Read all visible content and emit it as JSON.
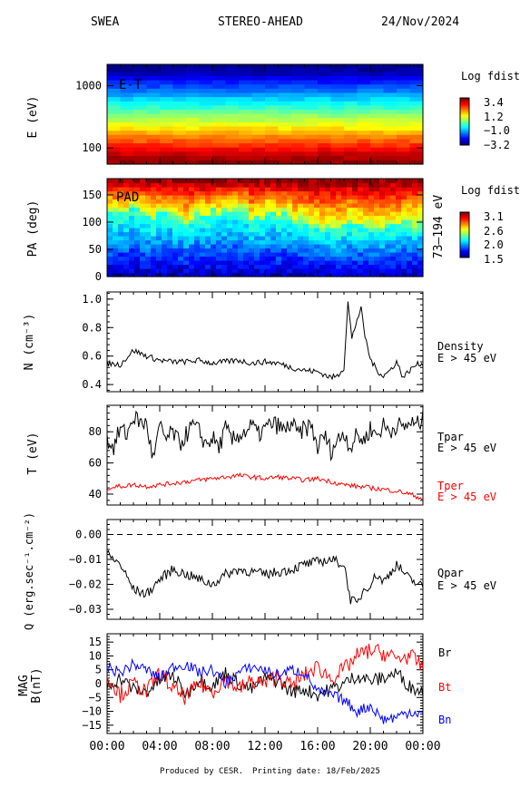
{
  "header": {
    "instrument": "SWEA",
    "spacecraft": "STEREO-AHEAD",
    "date": "24/Nov/2024"
  },
  "footer": {
    "produced_by": "Produced by CESR.",
    "printing_date": "Printing date: 18/Feb/2025"
  },
  "time_axis": {
    "tick_labels": [
      "00:00",
      "04:00",
      "08:00",
      "12:00",
      "16:00",
      "20:00",
      "00:00"
    ],
    "tick_hours": [
      0,
      4,
      8,
      12,
      16,
      20,
      24
    ],
    "range_hours": [
      0,
      24
    ]
  },
  "colors": {
    "black_series": "#000000",
    "red_series": "#ff0000",
    "blue_series": "#0000ff"
  },
  "chart_data": [
    {
      "type": "heatmap",
      "panel_label": "E-T",
      "ylabel": "E (eV)",
      "y_scale": "log",
      "ylim": [
        55,
        2200
      ],
      "y_tick_labels": [
        "100",
        "1000"
      ],
      "y_ticks": [
        100,
        1000
      ],
      "colorbar_title": "Log fdist",
      "colorbar_labels": [
        "3.4",
        "1.2",
        "−1.0",
        "−3.2"
      ],
      "colorbar_range": [
        -3.2,
        3.4
      ],
      "energy_levels_ev": [
        60,
        70,
        82,
        96,
        112,
        131,
        153,
        179,
        209,
        244,
        285,
        333,
        389,
        454,
        530,
        619,
        723,
        845,
        987,
        1153,
        1347,
        1573,
        1837,
        2146
      ],
      "log_fdist": [
        3.3,
        3.1,
        2.9,
        2.6,
        2.3,
        2.0,
        1.7,
        1.4,
        1.1,
        0.8,
        0.5,
        0.2,
        -0.1,
        -0.4,
        -0.7,
        -1.0,
        -1.3,
        -1.6,
        -1.9,
        -2.2,
        -2.5,
        -2.8,
        -3.0,
        -3.2
      ]
    },
    {
      "type": "heatmap",
      "panel_label": "PAD",
      "ylabel": "PA (deg)",
      "ylim": [
        0,
        180
      ],
      "y_tick_labels": [
        "0",
        "50",
        "100",
        "150"
      ],
      "y_ticks": [
        0,
        50,
        100,
        150
      ],
      "right_label": "73–194 eV",
      "colorbar_title": "Log fdist",
      "colorbar_labels": [
        "3.1",
        "2.6",
        "2.0",
        "1.5"
      ],
      "colorbar_range": [
        1.5,
        3.1
      ],
      "cross_over_hours": [
        0,
        1,
        2,
        3,
        4,
        5,
        6,
        7,
        8,
        9,
        10,
        11,
        12,
        13,
        14,
        15,
        16,
        17,
        18,
        19,
        20,
        21,
        22,
        23,
        24
      ],
      "pa_crossover_deg": [
        120,
        125,
        128,
        110,
        115,
        120,
        105,
        118,
        122,
        125,
        118,
        110,
        112,
        115,
        108,
        95,
        92,
        90,
        95,
        102,
        98,
        92,
        100,
        96,
        105
      ]
    },
    {
      "type": "line",
      "ylabel": "N (cm⁻³)",
      "ylim": [
        0.35,
        1.05
      ],
      "y_tick_labels": [
        "0.4",
        "0.6",
        "0.8",
        "1.0"
      ],
      "y_ticks": [
        0.4,
        0.6,
        0.8,
        1.0
      ],
      "right_labels": [
        "Density",
        "E > 45 eV"
      ],
      "series": [
        {
          "name": "Density",
          "color": "#000000",
          "x": [
            0,
            1,
            2,
            3,
            4,
            5,
            6,
            7,
            8,
            9,
            10,
            11,
            12,
            13,
            14,
            15,
            16,
            16.5,
            17,
            17.5,
            18,
            18.3,
            18.6,
            19,
            19.3,
            19.6,
            20,
            20.5,
            21,
            21.5,
            22,
            22.5,
            23,
            23.5,
            24
          ],
          "y": [
            0.55,
            0.54,
            0.64,
            0.6,
            0.57,
            0.56,
            0.56,
            0.57,
            0.55,
            0.56,
            0.57,
            0.55,
            0.56,
            0.55,
            0.52,
            0.5,
            0.49,
            0.47,
            0.45,
            0.46,
            0.52,
            0.98,
            0.72,
            0.86,
            0.93,
            0.74,
            0.58,
            0.5,
            0.46,
            0.5,
            0.56,
            0.45,
            0.5,
            0.54,
            0.55
          ]
        }
      ]
    },
    {
      "type": "line",
      "ylabel": "T (eV)",
      "ylim": [
        33,
        97
      ],
      "y_tick_labels": [
        "40",
        "60",
        "80"
      ],
      "y_ticks": [
        40,
        60,
        80
      ],
      "series": [
        {
          "name": "Tpar",
          "label_lines": [
            "Tpar",
            "E > 45 eV"
          ],
          "color": "#000000",
          "x": [
            0,
            0.5,
            1,
            1.5,
            2,
            2.5,
            3,
            3.5,
            4,
            4.5,
            5,
            5.5,
            6,
            6.5,
            7,
            7.5,
            8,
            8.5,
            9,
            9.5,
            10,
            10.5,
            11,
            11.5,
            12,
            12.5,
            13,
            13.5,
            14,
            14.5,
            15,
            15.5,
            16,
            16.5,
            17,
            17.5,
            18,
            18.5,
            19,
            19.5,
            20,
            20.5,
            21,
            21.5,
            22,
            22.5,
            23,
            23.5,
            24
          ],
          "y": [
            75,
            70,
            82,
            78,
            90,
            86,
            85,
            62,
            83,
            75,
            80,
            72,
            78,
            84,
            80,
            72,
            76,
            70,
            82,
            74,
            78,
            80,
            84,
            78,
            82,
            85,
            84,
            80,
            86,
            78,
            82,
            84,
            70,
            78,
            68,
            74,
            80,
            70,
            78,
            74,
            82,
            78,
            84,
            80,
            85,
            82,
            86,
            84,
            88
          ]
        },
        {
          "name": "Tper",
          "label_lines": [
            "Tper",
            "E > 45 eV"
          ],
          "color": "#ff0000",
          "x": [
            0,
            1,
            2,
            3,
            4,
            5,
            6,
            7,
            8,
            9,
            10,
            11,
            12,
            13,
            14,
            15,
            16,
            17,
            18,
            19,
            20,
            21,
            22,
            23,
            24
          ],
          "y": [
            44,
            45,
            46,
            45,
            46,
            47,
            48,
            49,
            50,
            51,
            52,
            51,
            50,
            51,
            50,
            49,
            50,
            48,
            46,
            45,
            44,
            43,
            42,
            40,
            37
          ]
        }
      ]
    },
    {
      "type": "line",
      "ylabel": "Q (erg.sec⁻¹.cm⁻²)",
      "ylim": [
        -0.034,
        0.006
      ],
      "y_tick_labels": [
        "0.00",
        "−0.01",
        "−0.02",
        "−0.03"
      ],
      "y_ticks": [
        0.0,
        -0.01,
        -0.02,
        -0.03
      ],
      "reference_line": 0.0,
      "right_labels": [
        "Qpar",
        "E > 45 eV"
      ],
      "series": [
        {
          "name": "Qpar",
          "color": "#000000",
          "x": [
            0,
            1,
            2,
            3,
            4,
            5,
            6,
            7,
            8,
            9,
            10,
            11,
            12,
            13,
            14,
            15,
            16,
            17,
            18,
            18.5,
            19,
            19.5,
            20,
            20.5,
            21,
            22,
            23,
            24
          ],
          "y": [
            -0.008,
            -0.012,
            -0.022,
            -0.024,
            -0.018,
            -0.014,
            -0.016,
            -0.018,
            -0.02,
            -0.016,
            -0.014,
            -0.015,
            -0.016,
            -0.015,
            -0.014,
            -0.012,
            -0.011,
            -0.01,
            -0.012,
            -0.026,
            -0.028,
            -0.022,
            -0.02,
            -0.016,
            -0.019,
            -0.012,
            -0.018,
            -0.021
          ]
        }
      ]
    },
    {
      "type": "line",
      "ylabel": "MAG B(nT)",
      "ylim": [
        -18,
        18
      ],
      "y_tick_labels": [
        "15",
        "10",
        "5",
        "0",
        "−5",
        "−10",
        "−15"
      ],
      "y_ticks": [
        15,
        10,
        5,
        0,
        -5,
        -10,
        -15
      ],
      "series": [
        {
          "name": "Br",
          "color": "#000000",
          "x": [
            0,
            1,
            2,
            3,
            4,
            5,
            6,
            7,
            8,
            9,
            10,
            11,
            12,
            13,
            14,
            15,
            16,
            17,
            18,
            19,
            20,
            21,
            22,
            23,
            24
          ],
          "y": [
            -1,
            2,
            -2,
            -3,
            1,
            3,
            -4,
            2,
            -1,
            4,
            0,
            -2,
            2,
            1,
            -3,
            -2,
            -4,
            -2,
            0,
            3,
            1,
            2,
            4,
            -1,
            -3
          ]
        },
        {
          "name": "Bt",
          "color": "#ff0000",
          "x": [
            0,
            1,
            2,
            3,
            4,
            5,
            6,
            7,
            8,
            9,
            10,
            11,
            12,
            13,
            14,
            15,
            16,
            17,
            18,
            19,
            20,
            21,
            22,
            23,
            24
          ],
          "y": [
            3,
            -4,
            0,
            -3,
            4,
            -2,
            -5,
            0,
            -3,
            2,
            -2,
            1,
            0,
            3,
            -1,
            3,
            6,
            2,
            5,
            10,
            12,
            11,
            9,
            10,
            6
          ]
        },
        {
          "name": "Bn",
          "color": "#0000ff",
          "x": [
            0,
            1,
            2,
            3,
            4,
            5,
            6,
            7,
            8,
            9,
            10,
            11,
            12,
            13,
            14,
            15,
            16,
            17,
            18,
            19,
            20,
            21,
            22,
            23,
            24
          ],
          "y": [
            6,
            4,
            7,
            5,
            2,
            6,
            7,
            4,
            5,
            0,
            4,
            6,
            5,
            3,
            5,
            4,
            -3,
            -4,
            -6,
            -10,
            -8,
            -13,
            -12,
            -10,
            -11
          ]
        }
      ]
    }
  ]
}
